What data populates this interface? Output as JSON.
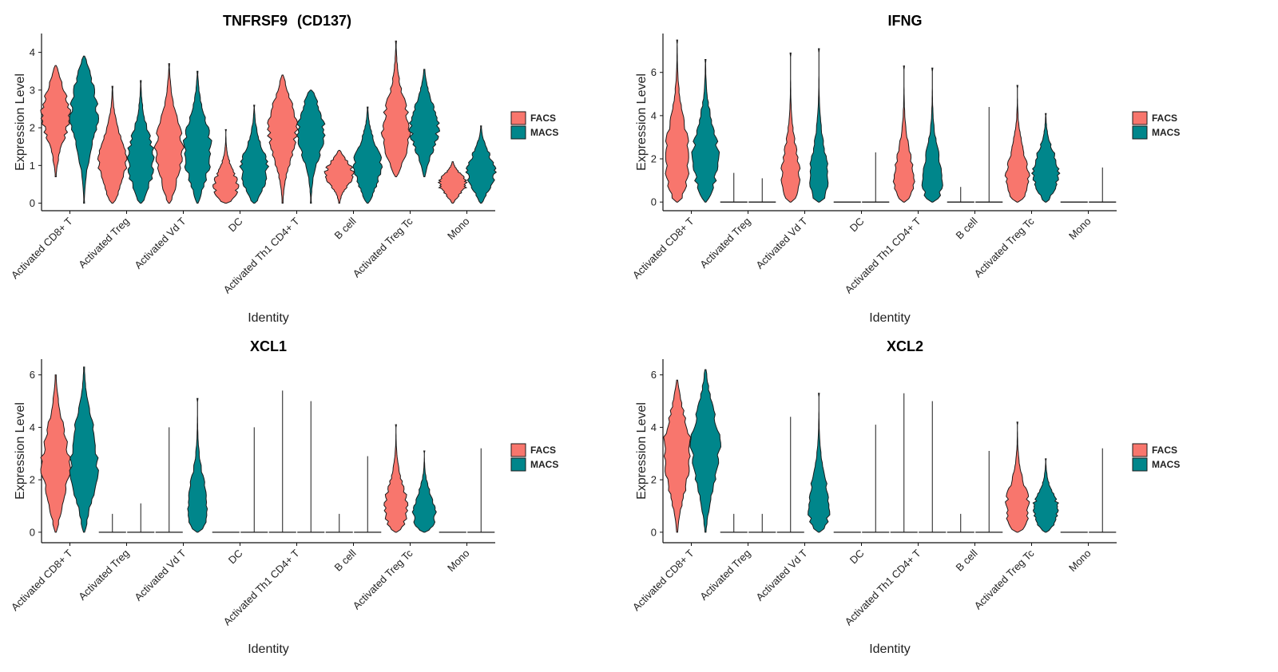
{
  "colors": {
    "FACS": "#F8766D",
    "MACS": "#00868B",
    "outline": "#1a1a1a"
  },
  "chart_data": [
    {
      "type": "violin",
      "title": "TNFRSF9",
      "title_suffix": "(CD137)",
      "xlabel": "Identity",
      "ylabel": "Expression Level",
      "ylim": [
        -0.2,
        4.5
      ],
      "yticks": [
        0,
        1,
        2,
        3,
        4
      ],
      "categories": [
        "Activated CD8+ T",
        "Activated Treg",
        "Activated Vd T",
        "DC",
        "Activated Th1 CD4+ T",
        "B cell",
        "Activated Treg Tc",
        "Mono"
      ],
      "legend": [
        "FACS",
        "MACS"
      ],
      "series": [
        {
          "name": "FACS",
          "max": [
            3.65,
            3.1,
            3.7,
            1.95,
            3.4,
            1.4,
            4.3,
            1.1
          ],
          "min": [
            0.7,
            0.0,
            0.0,
            0.0,
            0.0,
            0.0,
            0.7,
            0.0
          ],
          "peak": [
            2.4,
            1.0,
            1.3,
            0.3,
            2.0,
            0.8,
            1.8,
            0.5
          ]
        },
        {
          "name": "MACS",
          "max": [
            3.9,
            3.25,
            3.5,
            2.6,
            3.0,
            2.55,
            3.55,
            2.05
          ],
          "min": [
            0.0,
            0.0,
            0.0,
            0.0,
            0.0,
            0.0,
            0.7,
            0.0
          ],
          "peak": [
            2.5,
            1.0,
            1.3,
            0.8,
            2.0,
            0.9,
            2.0,
            0.8
          ]
        }
      ]
    },
    {
      "type": "violin",
      "title": "IFNG",
      "xlabel": "Identity",
      "ylabel": "Expression Level",
      "ylim": [
        -0.4,
        7.8
      ],
      "yticks": [
        0,
        2,
        4,
        6
      ],
      "categories": [
        "Activated CD8+ T",
        "Activated Treg",
        "Activated Vd T",
        "DC",
        "Activated Th1 CD4+ T",
        "B cell",
        "Activated Treg Tc",
        "Mono"
      ],
      "legend": [
        "FACS",
        "MACS"
      ],
      "series": [
        {
          "name": "FACS",
          "max": [
            7.5,
            1.35,
            6.9,
            0.0,
            6.3,
            0.7,
            5.4,
            0.0
          ],
          "min": [
            0,
            0,
            0,
            0,
            0,
            0,
            0,
            0
          ],
          "peak": [
            1.5,
            0.0,
            0.15,
            0.0,
            0.3,
            0.0,
            0.7,
            0.0
          ]
        },
        {
          "name": "MACS",
          "max": [
            6.6,
            1.1,
            7.1,
            2.3,
            6.2,
            4.4,
            4.1,
            1.6
          ],
          "min": [
            0,
            0,
            0,
            0,
            0,
            0,
            0,
            0
          ],
          "peak": [
            1.7,
            0.0,
            0.1,
            0.0,
            0.3,
            0.0,
            1.2,
            0.0
          ]
        }
      ]
    },
    {
      "type": "violin",
      "title": "XCL1",
      "xlabel": "Identity",
      "ylabel": "Expression Level",
      "ylim": [
        -0.4,
        6.6
      ],
      "yticks": [
        0,
        2,
        4,
        6
      ],
      "categories": [
        "Activated CD8+ T",
        "Activated Treg",
        "Activated Vd T",
        "DC",
        "Activated Th1 CD4+ T",
        "B cell",
        "Activated Treg Tc",
        "Mono"
      ],
      "legend": [
        "FACS",
        "MACS"
      ],
      "series": [
        {
          "name": "FACS",
          "max": [
            6.0,
            0.7,
            4.0,
            0.0,
            5.4,
            0.7,
            4.1,
            0.0
          ],
          "min": [
            0,
            0,
            0,
            0,
            0,
            0,
            0,
            0
          ],
          "peak": [
            2.5,
            0.0,
            0.0,
            0.0,
            0.0,
            0.0,
            0.6,
            0.0
          ]
        },
        {
          "name": "MACS",
          "max": [
            6.3,
            1.1,
            5.1,
            4.0,
            5.0,
            2.9,
            3.1,
            3.2
          ],
          "min": [
            0,
            0,
            0,
            0,
            0,
            0,
            0,
            0
          ],
          "peak": [
            2.6,
            0.0,
            0.4,
            0.0,
            0.0,
            0.0,
            0.5,
            0.0
          ]
        }
      ]
    },
    {
      "type": "violin",
      "title": "XCL2",
      "xlabel": "Identity",
      "ylabel": "Expression Level",
      "ylim": [
        -0.4,
        6.6
      ],
      "yticks": [
        0,
        2,
        4,
        6
      ],
      "categories": [
        "Activated CD8+ T",
        "Activated Treg",
        "Activated Vd T",
        "DC",
        "Activated Th1 CD4+ T",
        "B cell",
        "Activated Treg Tc",
        "Mono"
      ],
      "legend": [
        "FACS",
        "MACS"
      ],
      "series": [
        {
          "name": "FACS",
          "max": [
            5.8,
            0.7,
            4.4,
            0.0,
            5.3,
            0.7,
            4.2,
            0.0
          ],
          "min": [
            0,
            0,
            0,
            0,
            0,
            0,
            0,
            0
          ],
          "peak": [
            3.0,
            0.0,
            0.0,
            0.0,
            0.0,
            0.0,
            0.6,
            0.0
          ]
        },
        {
          "name": "MACS",
          "max": [
            6.2,
            0.7,
            5.3,
            4.1,
            5.0,
            3.1,
            2.8,
            3.2
          ],
          "min": [
            0,
            0,
            0,
            0,
            0,
            0,
            0,
            0
          ],
          "peak": [
            3.2,
            0.0,
            0.4,
            0.0,
            0.0,
            0.0,
            0.7,
            0.0
          ]
        }
      ]
    }
  ]
}
